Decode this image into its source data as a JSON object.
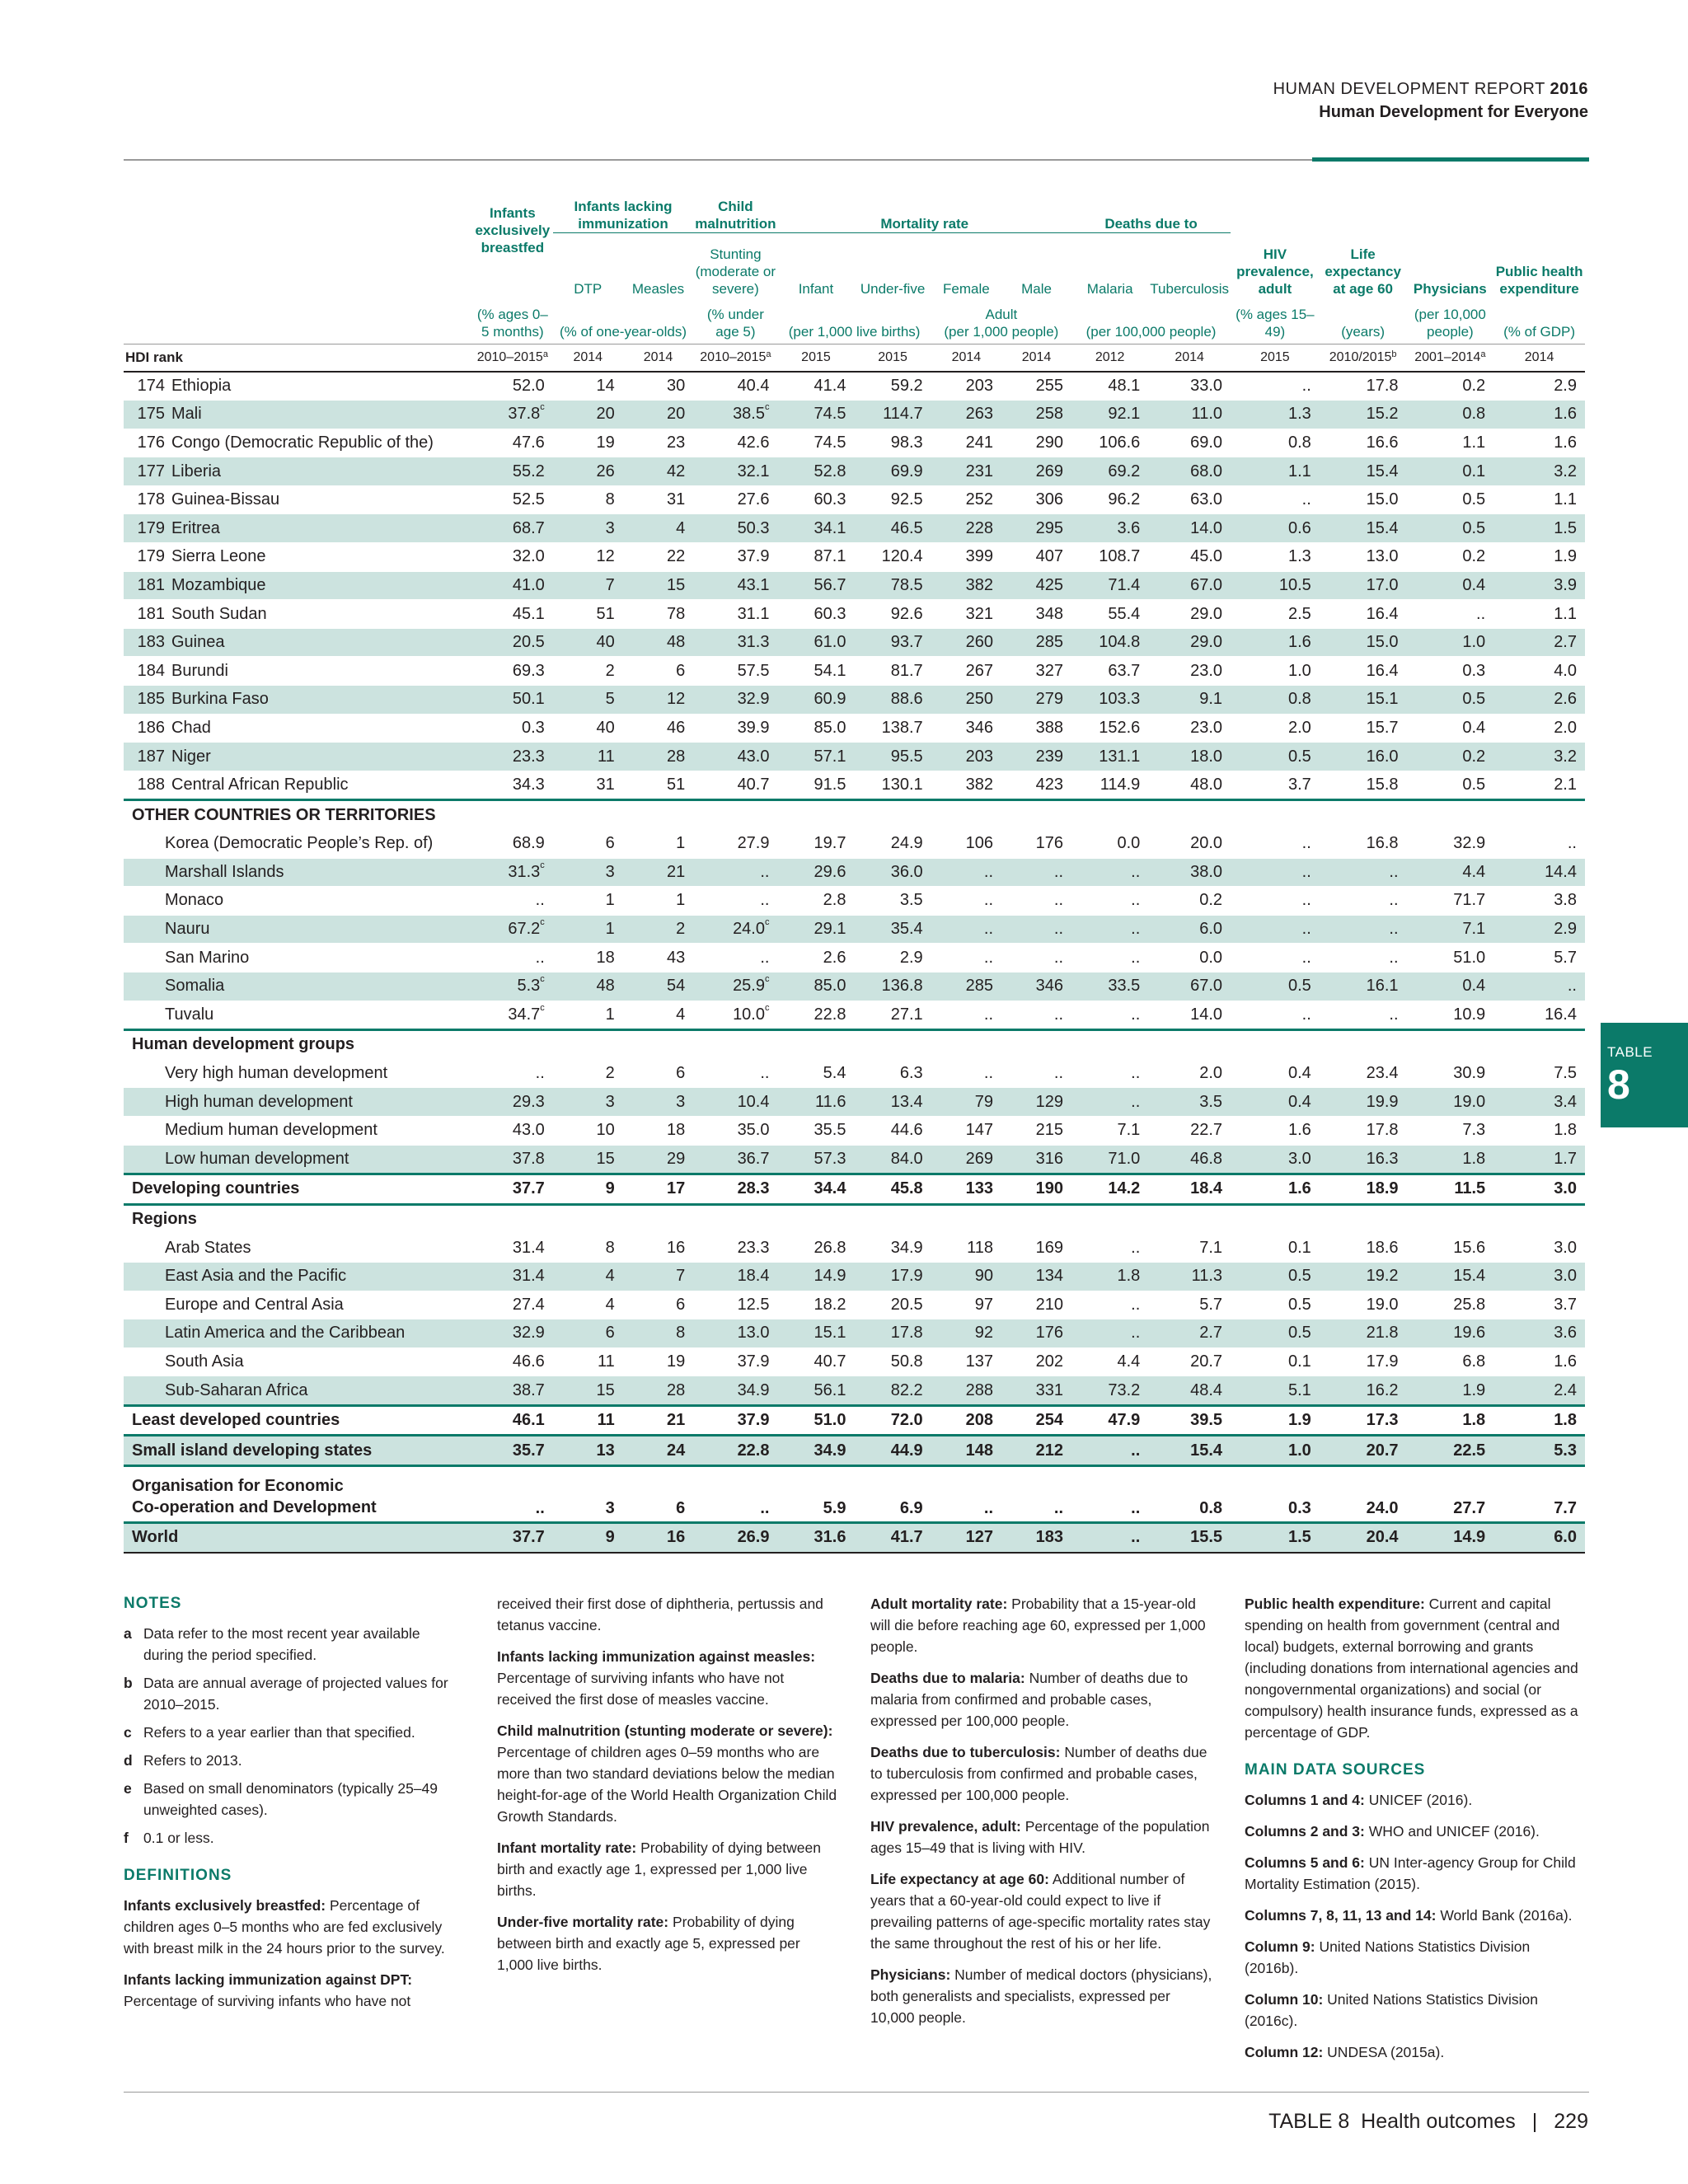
{
  "header": {
    "report": "HUMAN DEVELOPMENT REPORT",
    "year": "2016",
    "subtitle": "Human Development for Everyone"
  },
  "tab": {
    "label": "TABLE",
    "number": "8"
  },
  "table": {
    "groups": {
      "breastfed": "Infants exclusively breastfed",
      "immunization": "Infants lacking immunization",
      "malnutrition": "Child malnutrition",
      "mortality": "Mortality rate",
      "deaths": "Deaths due to",
      "hiv": "HIV prevalence, adult",
      "life": "Life expectancy at age 60",
      "physicians": "Physicians",
      "health": "Public health expenditure"
    },
    "subheads": [
      "DTP",
      "Measles",
      "Stunting (moderate or severe)",
      "Infant",
      "Under-five",
      "Female",
      "Male",
      "Malaria",
      "Tuberculosis"
    ],
    "units": {
      "breastfed": "(% ages 0–5 months)",
      "immunization": "(% of one-year-olds)",
      "malnutrition": "(% under age 5)",
      "births": "(per 1,000 live births)",
      "adult_label": "Adult",
      "adult": "(per 1,000 people)",
      "deaths": "(per 100,000 people)",
      "hiv": "(% ages 15–49)",
      "life": "(years)",
      "physicians": "(per 10,000 people)",
      "health": "(% of GDP)"
    },
    "rank_label": "HDI rank",
    "years": [
      "2010–2015",
      "2014",
      "2014",
      "2010–2015",
      "2015",
      "2015",
      "2014",
      "2014",
      "2012",
      "2014",
      "2015",
      "2010/2015",
      "2001–2014",
      "2014"
    ],
    "year_sups": [
      "a",
      "",
      "",
      "a",
      "",
      "",
      "",
      "",
      "",
      "",
      "",
      "b",
      "a",
      ""
    ],
    "rows": [
      {
        "type": "country",
        "rank": "174",
        "name": "Ethiopia",
        "v": [
          "52.0",
          "14",
          "30",
          "40.4",
          "41.4",
          "59.2",
          "203",
          "255",
          "48.1",
          "33.0",
          "..",
          "17.8",
          "0.2",
          "2.9"
        ]
      },
      {
        "type": "country",
        "rank": "175",
        "name": "Mali",
        "v": [
          "37.8 c",
          "20",
          "20",
          "38.5 c",
          "74.5",
          "114.7",
          "263",
          "258",
          "92.1",
          "11.0",
          "1.3",
          "15.2",
          "0.8",
          "1.6"
        ]
      },
      {
        "type": "country",
        "rank": "176",
        "name": "Congo (Democratic Republic of the)",
        "v": [
          "47.6",
          "19",
          "23",
          "42.6",
          "74.5",
          "98.3",
          "241",
          "290",
          "106.6",
          "69.0",
          "0.8",
          "16.6",
          "1.1",
          "1.6"
        ]
      },
      {
        "type": "country",
        "rank": "177",
        "name": "Liberia",
        "v": [
          "55.2",
          "26",
          "42",
          "32.1",
          "52.8",
          "69.9",
          "231",
          "269",
          "69.2",
          "68.0",
          "1.1",
          "15.4",
          "0.1",
          "3.2"
        ]
      },
      {
        "type": "country",
        "rank": "178",
        "name": "Guinea-Bissau",
        "v": [
          "52.5",
          "8",
          "31",
          "27.6",
          "60.3",
          "92.5",
          "252",
          "306",
          "96.2",
          "63.0",
          "..",
          "15.0",
          "0.5",
          "1.1"
        ]
      },
      {
        "type": "country",
        "rank": "179",
        "name": "Eritrea",
        "v": [
          "68.7",
          "3",
          "4",
          "50.3",
          "34.1",
          "46.5",
          "228",
          "295",
          "3.6",
          "14.0",
          "0.6",
          "15.4",
          "0.5",
          "1.5"
        ]
      },
      {
        "type": "country",
        "rank": "179",
        "name": "Sierra Leone",
        "v": [
          "32.0",
          "12",
          "22",
          "37.9",
          "87.1",
          "120.4",
          "399",
          "407",
          "108.7",
          "45.0",
          "1.3",
          "13.0",
          "0.2",
          "1.9"
        ]
      },
      {
        "type": "country",
        "rank": "181",
        "name": "Mozambique",
        "v": [
          "41.0",
          "7",
          "15",
          "43.1",
          "56.7",
          "78.5",
          "382",
          "425",
          "71.4",
          "67.0",
          "10.5",
          "17.0",
          "0.4",
          "3.9"
        ]
      },
      {
        "type": "country",
        "rank": "181",
        "name": "South Sudan",
        "v": [
          "45.1",
          "51",
          "78",
          "31.1",
          "60.3",
          "92.6",
          "321",
          "348",
          "55.4",
          "29.0",
          "2.5",
          "16.4",
          "..",
          "1.1"
        ]
      },
      {
        "type": "country",
        "rank": "183",
        "name": "Guinea",
        "v": [
          "20.5",
          "40",
          "48",
          "31.3",
          "61.0",
          "93.7",
          "260",
          "285",
          "104.8",
          "29.0",
          "1.6",
          "15.0",
          "1.0",
          "2.7"
        ]
      },
      {
        "type": "country",
        "rank": "184",
        "name": "Burundi",
        "v": [
          "69.3",
          "2",
          "6",
          "57.5",
          "54.1",
          "81.7",
          "267",
          "327",
          "63.7",
          "23.0",
          "1.0",
          "16.4",
          "0.3",
          "4.0"
        ]
      },
      {
        "type": "country",
        "rank": "185",
        "name": "Burkina Faso",
        "v": [
          "50.1",
          "5",
          "12",
          "32.9",
          "60.9",
          "88.6",
          "250",
          "279",
          "103.3",
          "9.1",
          "0.8",
          "15.1",
          "0.5",
          "2.6"
        ]
      },
      {
        "type": "country",
        "rank": "186",
        "name": "Chad",
        "v": [
          "0.3",
          "40",
          "46",
          "39.9",
          "85.0",
          "138.7",
          "346",
          "388",
          "152.6",
          "23.0",
          "2.0",
          "15.7",
          "0.4",
          "2.0"
        ]
      },
      {
        "type": "country",
        "rank": "187",
        "name": "Niger",
        "v": [
          "23.3",
          "11",
          "28",
          "43.0",
          "57.1",
          "95.5",
          "203",
          "239",
          "131.1",
          "18.0",
          "0.5",
          "16.0",
          "0.2",
          "3.2"
        ]
      },
      {
        "type": "country",
        "rank": "188",
        "name": "Central African Republic",
        "v": [
          "34.3",
          "31",
          "51",
          "40.7",
          "91.5",
          "130.1",
          "382",
          "423",
          "114.9",
          "48.0",
          "3.7",
          "15.8",
          "0.5",
          "2.1"
        ]
      },
      {
        "type": "section",
        "name": "OTHER COUNTRIES OR TERRITORIES"
      },
      {
        "type": "sub",
        "name": "Korea (Democratic People’s Rep. of)",
        "v": [
          "68.9",
          "6",
          "1",
          "27.9",
          "19.7",
          "24.9",
          "106",
          "176",
          "0.0",
          "20.0",
          "..",
          "16.8",
          "32.9",
          ".."
        ]
      },
      {
        "type": "sub",
        "name": "Marshall Islands",
        "v": [
          "31.3 c",
          "3",
          "21",
          "..",
          "29.6",
          "36.0",
          "..",
          "..",
          "..",
          "38.0",
          "..",
          "..",
          "4.4",
          "14.4"
        ]
      },
      {
        "type": "sub",
        "name": "Monaco",
        "v": [
          "..",
          "1",
          "1",
          "..",
          "2.8",
          "3.5",
          "..",
          "..",
          "..",
          "0.2",
          "..",
          "..",
          "71.7",
          "3.8"
        ]
      },
      {
        "type": "sub",
        "name": "Nauru",
        "v": [
          "67.2 c",
          "1",
          "2",
          "24.0 c",
          "29.1",
          "35.4",
          "..",
          "..",
          "..",
          "6.0",
          "..",
          "..",
          "7.1",
          "2.9"
        ]
      },
      {
        "type": "sub",
        "name": "San Marino",
        "v": [
          "..",
          "18",
          "43",
          "..",
          "2.6",
          "2.9",
          "..",
          "..",
          "..",
          "0.0",
          "..",
          "..",
          "51.0",
          "5.7"
        ]
      },
      {
        "type": "sub",
        "name": "Somalia",
        "v": [
          "5.3 c",
          "48",
          "54",
          "25.9 c",
          "85.0",
          "136.8",
          "285",
          "346",
          "33.5",
          "67.0",
          "0.5",
          "16.1",
          "0.4",
          ".."
        ]
      },
      {
        "type": "sub",
        "name": "Tuvalu",
        "v": [
          "34.7 c",
          "1",
          "4",
          "10.0 c",
          "22.8",
          "27.1",
          "..",
          "..",
          "..",
          "14.0",
          "..",
          "..",
          "10.9",
          "16.4"
        ]
      },
      {
        "type": "section",
        "name": "Human development groups"
      },
      {
        "type": "sub",
        "name": "Very high human development",
        "v": [
          "..",
          "2",
          "6",
          "..",
          "5.4",
          "6.3",
          "..",
          "..",
          "..",
          "2.0",
          "0.4",
          "23.4",
          "30.9",
          "7.5"
        ]
      },
      {
        "type": "sub",
        "name": "High human development",
        "v": [
          "29.3",
          "3",
          "3",
          "10.4",
          "11.6",
          "13.4",
          "79",
          "129",
          "..",
          "3.5",
          "0.4",
          "19.9",
          "19.0",
          "3.4"
        ]
      },
      {
        "type": "sub",
        "name": "Medium human development",
        "v": [
          "43.0",
          "10",
          "18",
          "35.0",
          "35.5",
          "44.6",
          "147",
          "215",
          "7.1",
          "22.7",
          "1.6",
          "17.8",
          "7.3",
          "1.8"
        ]
      },
      {
        "type": "sub",
        "name": "Low human development",
        "v": [
          "37.8",
          "15",
          "29",
          "36.7",
          "57.3",
          "84.0",
          "269",
          "316",
          "71.0",
          "46.8",
          "3.0",
          "16.3",
          "1.8",
          "1.7"
        ]
      },
      {
        "type": "bold",
        "name": "Developing countries",
        "v": [
          "37.7",
          "9",
          "17",
          "28.3",
          "34.4",
          "45.8",
          "133",
          "190",
          "14.2",
          "18.4",
          "1.6",
          "18.9",
          "11.5",
          "3.0"
        ]
      },
      {
        "type": "section",
        "name": "Regions"
      },
      {
        "type": "sub",
        "name": "Arab States",
        "v": [
          "31.4",
          "8",
          "16",
          "23.3",
          "26.8",
          "34.9",
          "118",
          "169",
          "..",
          "7.1",
          "0.1",
          "18.6",
          "15.6",
          "3.0"
        ]
      },
      {
        "type": "sub",
        "name": "East Asia and the Pacific",
        "v": [
          "31.4",
          "4",
          "7",
          "18.4",
          "14.9",
          "17.9",
          "90",
          "134",
          "1.8",
          "11.3",
          "0.5",
          "19.2",
          "15.4",
          "3.0"
        ]
      },
      {
        "type": "sub",
        "name": "Europe and Central Asia",
        "v": [
          "27.4",
          "4",
          "6",
          "12.5",
          "18.2",
          "20.5",
          "97",
          "210",
          "..",
          "5.7",
          "0.5",
          "19.0",
          "25.8",
          "3.7"
        ]
      },
      {
        "type": "sub",
        "name": "Latin America and the Caribbean",
        "v": [
          "32.9",
          "6",
          "8",
          "13.0",
          "15.1",
          "17.8",
          "92",
          "176",
          "..",
          "2.7",
          "0.5",
          "21.8",
          "19.6",
          "3.6"
        ]
      },
      {
        "type": "sub",
        "name": "South Asia",
        "v": [
          "46.6",
          "11",
          "19",
          "37.9",
          "40.7",
          "50.8",
          "137",
          "202",
          "4.4",
          "20.7",
          "0.1",
          "17.9",
          "6.8",
          "1.6"
        ]
      },
      {
        "type": "sub",
        "name": "Sub-Saharan Africa",
        "v": [
          "38.7",
          "15",
          "28",
          "34.9",
          "56.1",
          "82.2",
          "288",
          "331",
          "73.2",
          "48.4",
          "5.1",
          "16.2",
          "1.9",
          "2.4"
        ]
      },
      {
        "type": "bold",
        "name": "Least developed countries",
        "v": [
          "46.1",
          "11",
          "21",
          "37.9",
          "51.0",
          "72.0",
          "208",
          "254",
          "47.9",
          "39.5",
          "1.9",
          "17.3",
          "1.8",
          "1.8"
        ]
      },
      {
        "type": "bold",
        "name": "Small island developing states",
        "v": [
          "35.7",
          "13",
          "24",
          "22.8",
          "34.9",
          "44.9",
          "148",
          "212",
          "..",
          "15.4",
          "1.0",
          "20.7",
          "22.5",
          "5.3"
        ]
      },
      {
        "type": "oecd",
        "name": "Organisation for Economic",
        "name2": "Co-operation and Development",
        "v": [
          "..",
          "3",
          "6",
          "..",
          "5.9",
          "6.9",
          "..",
          "..",
          "..",
          "0.8",
          "0.3",
          "24.0",
          "27.7",
          "7.7"
        ]
      },
      {
        "type": "world",
        "name": "World",
        "v": [
          "37.7",
          "9",
          "16",
          "26.9",
          "31.6",
          "41.7",
          "127",
          "183",
          "..",
          "15.5",
          "1.5",
          "20.4",
          "14.9",
          "6.0"
        ]
      }
    ]
  },
  "notes": {
    "notes_title": "NOTES",
    "footnotes": [
      {
        "k": "a",
        "t": "Data refer to the most recent year available during the period specified."
      },
      {
        "k": "b",
        "t": "Data are annual average of projected values for 2010–2015."
      },
      {
        "k": "c",
        "t": "Refers to a year earlier than that specified."
      },
      {
        "k": "d",
        "t": "Refers to 2013."
      },
      {
        "k": "e",
        "t": "Based on small denominators (typically 25–49 unweighted cases)."
      },
      {
        "k": "f",
        "t": "0.1 or less."
      }
    ],
    "definitions_title": "DEFINITIONS",
    "definitions_col1": [
      {
        "term": "Infants exclusively breastfed:",
        "text": "Percentage of children ages 0–5 months who are fed exclusively with breast milk in the 24 hours prior to the survey."
      },
      {
        "term": "Infants lacking immunization against DPT:",
        "text": "Percentage of surviving infants who have not"
      }
    ],
    "col2_intro": "received their first dose of diphtheria, pertussis and tetanus vaccine.",
    "definitions_col2": [
      {
        "term": "Infants lacking immunization against measles:",
        "text": "Percentage of surviving infants who have not received the first dose of measles vaccine."
      },
      {
        "term": "Child malnutrition (stunting moderate or severe):",
        "text": "Percentage of children ages 0–59 months who are more than two standard deviations below the median height-for-age of the World Health Organization Child Growth Standards."
      },
      {
        "term": "Infant mortality rate:",
        "text": "Probability of dying between birth and exactly age 1, expressed per 1,000 live births."
      },
      {
        "term": "Under-five mortality rate:",
        "text": "Probability of dying between birth and exactly age 5, expressed per 1,000 live births."
      }
    ],
    "definitions_col3": [
      {
        "term": "Adult mortality rate:",
        "text": "Probability that a 15-year-old will die before reaching age 60, expressed per 1,000 people."
      },
      {
        "term": "Deaths due to malaria:",
        "text": "Number of deaths due to malaria from confirmed and probable cases, expressed per 100,000 people."
      },
      {
        "term": "Deaths due to tuberculosis:",
        "text": "Number of deaths due to tuberculosis from confirmed and probable cases, expressed per 100,000 people."
      },
      {
        "term": "HIV prevalence, adult:",
        "text": "Percentage of the population ages 15–49 that is living with HIV."
      },
      {
        "term": "Life expectancy at age 60:",
        "text": "Additional number of years that a 60-year-old could expect to live if prevailing patterns of age-specific mortality rates stay the same throughout the rest of his or her life."
      },
      {
        "term": "Physicians:",
        "text": "Number of medical doctors (physicians), both generalists and specialists, expressed per 10,000 people."
      }
    ],
    "definitions_col4": [
      {
        "term": "Public health expenditure:",
        "text": "Current and capital spending on health from government (central and local) budgets, external borrowing and grants (including donations from international agencies and nongovernmental organizations) and social (or compulsory) health insurance funds, expressed as a percentage of GDP."
      }
    ],
    "sources_title": "MAIN DATA SOURCES",
    "sources": [
      {
        "term": "Columns 1 and 4:",
        "text": "UNICEF (2016)."
      },
      {
        "term": "Columns 2 and 3:",
        "text": "WHO and UNICEF (2016)."
      },
      {
        "term": "Columns 5 and 6:",
        "text": "UN Inter-agency Group for Child Mortality Estimation (2015)."
      },
      {
        "term": "Columns 7, 8, 11, 13 and 14:",
        "text": "World Bank (2016a)."
      },
      {
        "term": "Column 9:",
        "text": "United Nations Statistics Division (2016b)."
      },
      {
        "term": "Column 10:",
        "text": "United Nations Statistics Division (2016c)."
      },
      {
        "term": "Column 12:",
        "text": "UNDESA (2015a)."
      }
    ]
  },
  "footer": {
    "table_label": "TABLE 8",
    "title": "Health outcomes",
    "separator": "|",
    "page": "229"
  }
}
